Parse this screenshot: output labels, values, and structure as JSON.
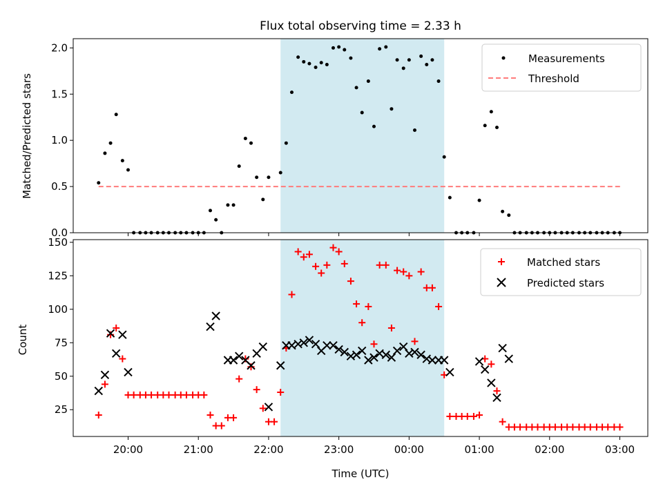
{
  "chart_data": {
    "type": "scatter",
    "title": "Flux total observing time = 2.33 h",
    "xlabel": "Time (UTC)",
    "x_ticks": [
      "20:00",
      "21:00",
      "22:00",
      "23:00",
      "00:00",
      "01:00",
      "02:00",
      "03:00"
    ],
    "shaded_interval": {
      "start_hours": 22.17,
      "end_hours": 24.5,
      "color": "#add8e6"
    },
    "panels": [
      {
        "ylabel": "Matched/Predicted stars",
        "ylim": [
          0,
          2.1
        ],
        "y_ticks": [
          "0.0",
          "0.5",
          "1.0",
          "1.5",
          "2.0"
        ],
        "legend_position": "top-right",
        "series": [
          {
            "name": "Measurements",
            "marker": "dot",
            "color": "#000000",
            "points": [
              [
                19.58,
                0.54
              ],
              [
                19.67,
                0.86
              ],
              [
                19.75,
                0.97
              ],
              [
                19.83,
                1.28
              ],
              [
                19.92,
                0.78
              ],
              [
                20.0,
                0.68
              ],
              [
                20.08,
                0.0
              ],
              [
                20.17,
                0.0
              ],
              [
                20.25,
                0.0
              ],
              [
                20.33,
                0.0
              ],
              [
                20.42,
                0.0
              ],
              [
                20.5,
                0.0
              ],
              [
                20.58,
                0.0
              ],
              [
                20.67,
                0.0
              ],
              [
                20.75,
                0.0
              ],
              [
                20.83,
                0.0
              ],
              [
                20.92,
                0.0
              ],
              [
                21.0,
                0.0
              ],
              [
                21.08,
                0.0
              ],
              [
                21.17,
                0.24
              ],
              [
                21.25,
                0.14
              ],
              [
                21.33,
                0.0
              ],
              [
                21.42,
                0.3
              ],
              [
                21.5,
                0.3
              ],
              [
                21.58,
                0.72
              ],
              [
                21.67,
                1.02
              ],
              [
                21.75,
                0.97
              ],
              [
                21.83,
                0.6
              ],
              [
                21.92,
                0.36
              ],
              [
                22.0,
                0.6
              ],
              [
                22.17,
                0.65
              ],
              [
                22.25,
                0.97
              ],
              [
                22.33,
                1.52
              ],
              [
                22.42,
                1.9
              ],
              [
                22.5,
                1.85
              ],
              [
                22.58,
                1.83
              ],
              [
                22.67,
                1.79
              ],
              [
                22.75,
                1.84
              ],
              [
                22.83,
                1.82
              ],
              [
                22.92,
                2.0
              ],
              [
                23.0,
                2.01
              ],
              [
                23.08,
                1.98
              ],
              [
                23.17,
                1.89
              ],
              [
                23.25,
                1.57
              ],
              [
                23.33,
                1.3
              ],
              [
                23.42,
                1.64
              ],
              [
                23.5,
                1.15
              ],
              [
                23.58,
                1.99
              ],
              [
                23.67,
                2.01
              ],
              [
                23.75,
                1.34
              ],
              [
                23.83,
                1.87
              ],
              [
                23.92,
                1.78
              ],
              [
                24.0,
                1.87
              ],
              [
                24.08,
                1.11
              ],
              [
                24.17,
                1.91
              ],
              [
                24.25,
                1.82
              ],
              [
                24.33,
                1.87
              ],
              [
                24.42,
                1.64
              ],
              [
                24.5,
                0.82
              ],
              [
                24.58,
                0.38
              ],
              [
                24.67,
                0.0
              ],
              [
                24.75,
                0.0
              ],
              [
                24.83,
                0.0
              ],
              [
                24.92,
                0.0
              ],
              [
                25.0,
                0.35
              ],
              [
                25.08,
                1.16
              ],
              [
                25.17,
                1.31
              ],
              [
                25.25,
                1.14
              ],
              [
                25.33,
                0.23
              ],
              [
                25.42,
                0.19
              ],
              [
                25.5,
                0.0
              ],
              [
                25.58,
                0.0
              ],
              [
                25.67,
                0.0
              ],
              [
                25.75,
                0.0
              ],
              [
                25.83,
                0.0
              ],
              [
                25.92,
                0.0
              ],
              [
                26.0,
                0.0
              ],
              [
                26.08,
                0.0
              ],
              [
                26.17,
                0.0
              ],
              [
                26.25,
                0.0
              ],
              [
                26.33,
                0.0
              ],
              [
                26.42,
                0.0
              ],
              [
                26.5,
                0.0
              ],
              [
                26.58,
                0.0
              ],
              [
                26.67,
                0.0
              ],
              [
                26.75,
                0.0
              ],
              [
                26.83,
                0.0
              ],
              [
                26.92,
                0.0
              ],
              [
                27.0,
                0.0
              ]
            ]
          },
          {
            "name": "Threshold",
            "marker": "dashed-line",
            "color": "#ff7b7b",
            "points": [
              [
                19.58,
                0.5
              ],
              [
                27.03,
                0.5
              ]
            ]
          }
        ]
      },
      {
        "ylabel": "Count",
        "ylim": [
          5,
          152
        ],
        "y_ticks": [
          "25",
          "50",
          "75",
          "100",
          "125",
          "150"
        ],
        "legend_position": "top-right",
        "series": [
          {
            "name": "Matched stars",
            "marker": "plus",
            "color": "#ff0000",
            "points": [
              [
                19.58,
                21
              ],
              [
                19.67,
                44
              ],
              [
                19.75,
                81
              ],
              [
                19.83,
                86
              ],
              [
                19.92,
                63
              ],
              [
                20.0,
                36
              ],
              [
                20.08,
                36
              ],
              [
                20.17,
                36
              ],
              [
                20.25,
                36
              ],
              [
                20.33,
                36
              ],
              [
                20.42,
                36
              ],
              [
                20.5,
                36
              ],
              [
                20.58,
                36
              ],
              [
                20.67,
                36
              ],
              [
                20.75,
                36
              ],
              [
                20.83,
                36
              ],
              [
                20.92,
                36
              ],
              [
                21.0,
                36
              ],
              [
                21.08,
                36
              ],
              [
                21.17,
                21
              ],
              [
                21.25,
                13
              ],
              [
                21.33,
                13
              ],
              [
                21.42,
                19
              ],
              [
                21.5,
                19
              ],
              [
                21.58,
                48
              ],
              [
                21.67,
                63
              ],
              [
                21.75,
                57
              ],
              [
                21.83,
                40
              ],
              [
                21.92,
                26
              ],
              [
                22.0,
                16
              ],
              [
                22.08,
                16
              ],
              [
                22.17,
                38
              ],
              [
                22.25,
                71
              ],
              [
                22.33,
                111
              ],
              [
                22.42,
                143
              ],
              [
                22.5,
                139
              ],
              [
                22.58,
                141
              ],
              [
                22.67,
                132
              ],
              [
                22.75,
                127
              ],
              [
                22.83,
                133
              ],
              [
                22.92,
                146
              ],
              [
                23.0,
                143
              ],
              [
                23.08,
                134
              ],
              [
                23.17,
                121
              ],
              [
                23.25,
                104
              ],
              [
                23.33,
                90
              ],
              [
                23.42,
                102
              ],
              [
                23.5,
                74
              ],
              [
                23.58,
                133
              ],
              [
                23.67,
                133
              ],
              [
                23.75,
                86
              ],
              [
                23.83,
                129
              ],
              [
                23.92,
                128
              ],
              [
                24.0,
                125
              ],
              [
                24.08,
                76
              ],
              [
                24.17,
                128
              ],
              [
                24.25,
                116
              ],
              [
                24.33,
                116
              ],
              [
                24.42,
                102
              ],
              [
                24.5,
                51
              ],
              [
                24.58,
                20
              ],
              [
                24.67,
                20
              ],
              [
                24.75,
                20
              ],
              [
                24.83,
                20
              ],
              [
                24.92,
                20
              ],
              [
                25.0,
                21
              ],
              [
                25.08,
                63
              ],
              [
                25.17,
                59
              ],
              [
                25.25,
                39
              ],
              [
                25.33,
                16
              ],
              [
                25.42,
                12
              ],
              [
                25.5,
                12
              ],
              [
                25.58,
                12
              ],
              [
                25.67,
                12
              ],
              [
                25.75,
                12
              ],
              [
                25.83,
                12
              ],
              [
                25.92,
                12
              ],
              [
                26.0,
                12
              ],
              [
                26.08,
                12
              ],
              [
                26.17,
                12
              ],
              [
                26.25,
                12
              ],
              [
                26.33,
                12
              ],
              [
                26.42,
                12
              ],
              [
                26.5,
                12
              ],
              [
                26.58,
                12
              ],
              [
                26.67,
                12
              ],
              [
                26.75,
                12
              ],
              [
                26.83,
                12
              ],
              [
                26.92,
                12
              ],
              [
                27.0,
                12
              ]
            ]
          },
          {
            "name": "Predicted stars",
            "marker": "x",
            "color": "#000000",
            "points": [
              [
                19.58,
                39
              ],
              [
                19.67,
                51
              ],
              [
                19.75,
                82
              ],
              [
                19.83,
                67
              ],
              [
                19.92,
                81
              ],
              [
                20.0,
                53
              ],
              [
                21.17,
                87
              ],
              [
                21.25,
                95
              ],
              [
                21.42,
                62
              ],
              [
                21.5,
                62
              ],
              [
                21.58,
                65
              ],
              [
                21.67,
                62
              ],
              [
                21.75,
                58
              ],
              [
                21.83,
                67
              ],
              [
                21.92,
                72
              ],
              [
                22.0,
                27
              ],
              [
                22.17,
                58
              ],
              [
                22.25,
                73
              ],
              [
                22.33,
                73
              ],
              [
                22.42,
                74
              ],
              [
                22.5,
                75
              ],
              [
                22.58,
                77
              ],
              [
                22.67,
                74
              ],
              [
                22.75,
                69
              ],
              [
                22.83,
                73
              ],
              [
                22.92,
                73
              ],
              [
                23.0,
                70
              ],
              [
                23.08,
                68
              ],
              [
                23.17,
                65
              ],
              [
                23.25,
                66
              ],
              [
                23.33,
                69
              ],
              [
                23.42,
                62
              ],
              [
                23.5,
                64
              ],
              [
                23.58,
                67
              ],
              [
                23.67,
                66
              ],
              [
                23.75,
                64
              ],
              [
                23.83,
                69
              ],
              [
                23.92,
                72
              ],
              [
                24.0,
                67
              ],
              [
                24.08,
                68
              ],
              [
                24.17,
                66
              ],
              [
                24.25,
                63
              ],
              [
                24.33,
                62
              ],
              [
                24.42,
                62
              ],
              [
                24.5,
                62
              ],
              [
                24.58,
                53
              ],
              [
                25.0,
                61
              ],
              [
                25.08,
                55
              ],
              [
                25.17,
                45
              ],
              [
                25.25,
                34
              ],
              [
                25.33,
                71
              ],
              [
                25.42,
                63
              ]
            ]
          }
        ]
      }
    ]
  }
}
